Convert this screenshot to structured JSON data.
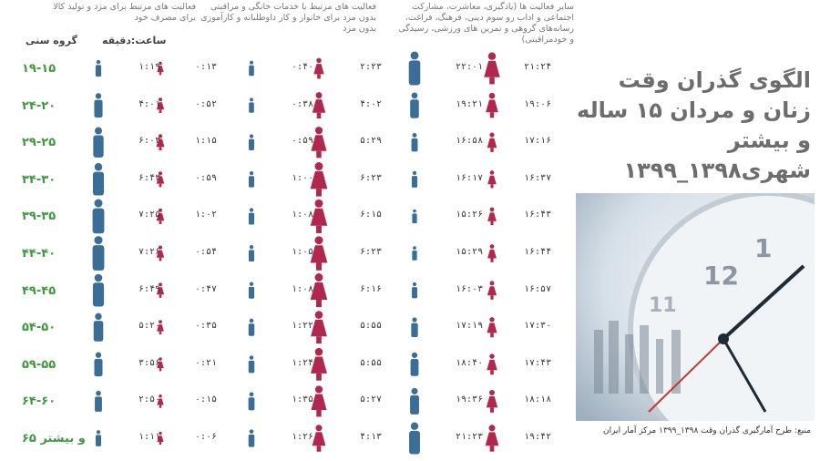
{
  "title": "الگوی گذران وقت زنان و مردان ۱۵ ساله و بیشتر شهری۱۳۹۸_۱۳۹۹",
  "source": "منبع: طرح آمارگیری گذران وقت ۱۳۹۸_۱۳۹۹ مرکز آمار ایران",
  "headers": {
    "age": "گروه سنی",
    "unit": "ساعت:دقیقه",
    "paid": "فعالیت های مرتبط برای مزد و تولید کالا برای مصرف خود",
    "care": "فعالیت های مرتبط با خدمات خانگی و مراقبتی بدون مزد برای خانوار و کار داوطلبانه و کارآموزی بدون مزد",
    "other": "سایر فعالیت ها (یادگیری، معاشرت، مشارکت اجتماعی و اداب رو سوم دینی، فرهنگ، فراغت، رسانه‌های گروهی و تمرین های ورزشی، رسیدگی و خودمراقبتی)"
  },
  "colors": {
    "male": "#3b6e96",
    "female": "#b0284e",
    "age": "#3e9a3e"
  },
  "chart_data": {
    "type": "table",
    "unit": "ساعت:دقیقه",
    "rows": [
      {
        "age": "۱۹-۱۵",
        "paid_m": "۱:۱۹",
        "paid_f": "۰:۱۳",
        "care_m": "۰:۴۰",
        "care_f": "۲:۲۳",
        "other_m": "۲۲:۰۱",
        "other_f": "۲۱:۲۴"
      },
      {
        "age": "۲۴-۲۰",
        "paid_m": "۴:۰۱",
        "paid_f": "۰:۵۲",
        "care_m": "۰:۳۸",
        "care_f": "۴:۰۲",
        "other_m": "۱۹:۲۱",
        "other_f": "۱۹:۰۶"
      },
      {
        "age": "۲۹-۲۵",
        "paid_m": "۶:۰۳",
        "paid_f": "۱:۱۵",
        "care_m": "۰:۵۹",
        "care_f": "۵:۲۹",
        "other_m": "۱۶:۵۸",
        "other_f": "۱۷:۱۶"
      },
      {
        "age": "۳۴-۳۰",
        "paid_m": "۶:۴۳",
        "paid_f": "۰:۵۹",
        "care_m": "۱:۰۰",
        "care_f": "۶:۲۳",
        "other_m": "۱۶:۱۷",
        "other_f": "۱۶:۳۷"
      },
      {
        "age": "۳۹-۳۵",
        "paid_m": "۷:۲۵",
        "paid_f": "۱:۰۲",
        "care_m": "۱:۰۸",
        "care_f": "۶:۱۵",
        "other_m": "۱۵:۲۶",
        "other_f": "۱۶:۴۳"
      },
      {
        "age": "۴۴-۴۰",
        "paid_m": "۷:۲۶",
        "paid_f": "۰:۵۴",
        "care_m": "۱:۰۵",
        "care_f": "۶:۲۳",
        "other_m": "۱۵:۲۹",
        "other_f": "۱۶:۴۴"
      },
      {
        "age": "۴۹-۴۵",
        "paid_m": "۶:۴۹",
        "paid_f": "۰:۴۷",
        "care_m": "۱:۰۸",
        "care_f": "۶:۱۶",
        "other_m": "۱۶:۰۳",
        "other_f": "۱۶:۵۷"
      },
      {
        "age": "۵۴-۵۰",
        "paid_m": "۵:۲۰",
        "paid_f": "۰:۳۵",
        "care_m": "۱:۲۲",
        "care_f": "۵:۵۵",
        "other_m": "۱۷:۱۹",
        "other_f": "۱۷:۳۰"
      },
      {
        "age": "۵۹-۵۵",
        "paid_m": "۳:۵۶",
        "paid_f": "۰:۲۱",
        "care_m": "۱:۲۴",
        "care_f": "۵:۵۵",
        "other_m": "۱۸:۴۰",
        "other_f": "۱۷:۴۳"
      },
      {
        "age": "۶۴-۶۰",
        "paid_m": "۲:۵۰",
        "paid_f": "۰:۱۵",
        "care_m": "۱:۳۵",
        "care_f": "۵:۲۷",
        "other_m": "۱۹:۳۶",
        "other_f": "۱۸:۱۸"
      },
      {
        "age": "۶۵ و بیشتر",
        "paid_m": "۱:۱۱",
        "paid_f": "۰:۰۶",
        "care_m": "۱:۲۶",
        "care_f": "۴:۱۳",
        "other_m": "۲۱:۲۳",
        "other_f": "۱۹:۴۲"
      }
    ]
  }
}
